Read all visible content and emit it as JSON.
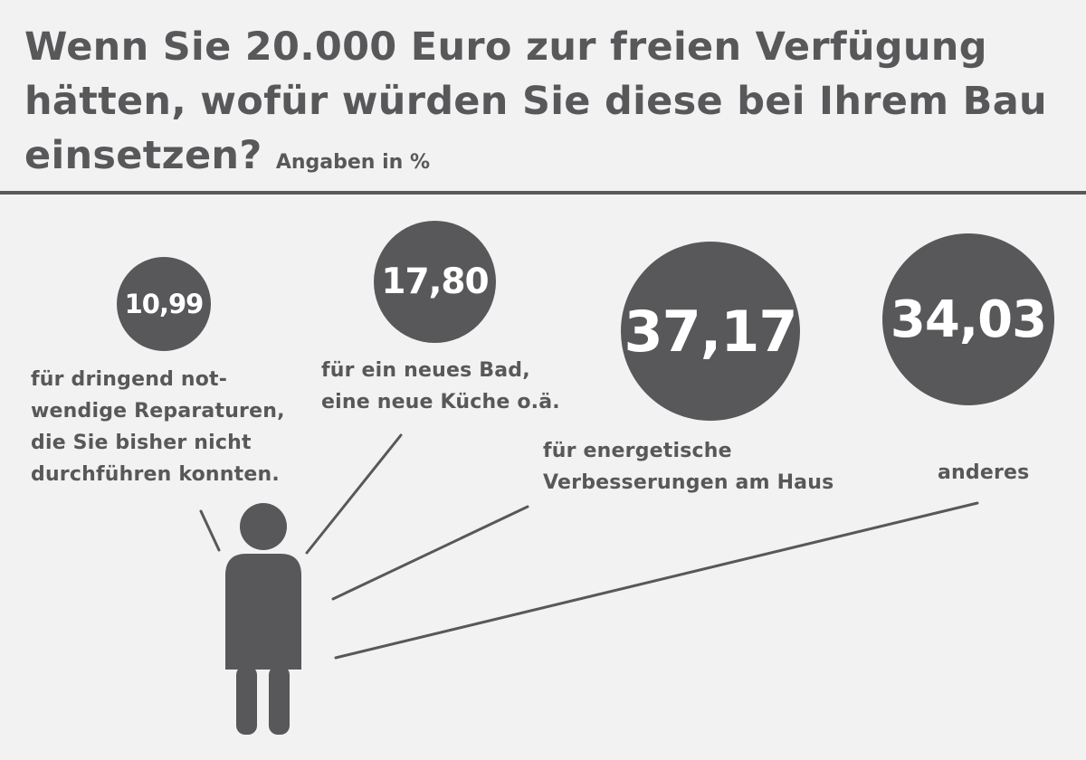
{
  "title": "Wenn Sie 20.000 Euro zur freien Verfügung hätten, wofür würden Sie diese bei Ihrem Bau einsetzen?",
  "unit_note": "Angaben in %",
  "colors": {
    "ink": "#58585a",
    "background": "#f2f2f2",
    "bubble_text": "#ffffff"
  },
  "chart_data": {
    "type": "bubble",
    "title": "Wenn Sie 20.000 Euro zur freien Verfügung hätten, wofür würden Sie diese bei Ihrem Bau einsetzen?",
    "unit": "Angaben in %",
    "categories": [
      "für dringend not-\nwendige Reparaturen,\ndie Sie bisher nicht\ndurchführen konnten.",
      "für ein neues Bad,\neine neue Küche o.ä.",
      "für energetische\nVerbesserungen am Haus",
      "anderes"
    ],
    "values": [
      10.99,
      17.8,
      37.17,
      34.03
    ],
    "value_labels": [
      "10,99",
      "17,80",
      "37,17",
      "34,03"
    ]
  }
}
